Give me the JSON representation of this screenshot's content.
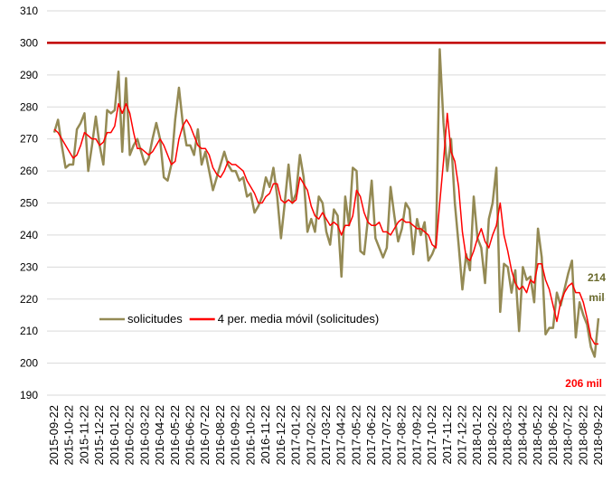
{
  "chart_data": {
    "type": "line",
    "categories": [
      "2015-09-22",
      null,
      null,
      null,
      "2015-10-22",
      null,
      null,
      null,
      "2015-11-22",
      null,
      null,
      null,
      "2015-12-22",
      null,
      null,
      null,
      "2016-01-22",
      null,
      null,
      null,
      "2016-02-22",
      null,
      null,
      null,
      "2016-03-22",
      null,
      null,
      null,
      "2016-04-22",
      null,
      null,
      null,
      "2016-05-22",
      null,
      null,
      null,
      "2016-06-22",
      null,
      null,
      null,
      "2016-07-22",
      null,
      null,
      null,
      "2016-08-22",
      null,
      null,
      null,
      "2016-09-22",
      null,
      null,
      null,
      "2016-10-22",
      null,
      null,
      null,
      "2016-11-22",
      null,
      null,
      null,
      "2016-12-22",
      null,
      null,
      null,
      "2017-01-22",
      null,
      null,
      null,
      "2017-02-22",
      null,
      null,
      null,
      "2017-03-22",
      null,
      null,
      null,
      "2017-04-22",
      null,
      null,
      null,
      "2017-05-22",
      null,
      null,
      null,
      "2017-06-22",
      null,
      null,
      null,
      "2017-07-22",
      null,
      null,
      null,
      "2017-08-22",
      null,
      null,
      null,
      "2017-09-22",
      null,
      null,
      null,
      "2017-10-22",
      null,
      null,
      null,
      "2017-11-22",
      null,
      null,
      null,
      "2017-12-22",
      null,
      null,
      null,
      "2018-01-22",
      null,
      null,
      null,
      "2018-02-22",
      null,
      null,
      null,
      "2018-03-22",
      null,
      null,
      null,
      "2018-04-22",
      null,
      null,
      null,
      "2018-05-22",
      null,
      null,
      null,
      "2018-06-22",
      null,
      null,
      null,
      "2018-07-22",
      null,
      null,
      null,
      "2018-08-22",
      null,
      null,
      null,
      "2018-09-22"
    ],
    "series": [
      {
        "name": "solicitudes",
        "color": "#948a54",
        "width": 2.5,
        "values": [
          272,
          276,
          268,
          261,
          262,
          262,
          273,
          275,
          278,
          260,
          268,
          277,
          268,
          262,
          279,
          278,
          279,
          291,
          266,
          289,
          265,
          268,
          270,
          266,
          262,
          264,
          270,
          275,
          270,
          258,
          257,
          262,
          276,
          286,
          275,
          268,
          268,
          265,
          273,
          262,
          266,
          260,
          254,
          258,
          262,
          266,
          262,
          260,
          260,
          257,
          258,
          252,
          253,
          247,
          249,
          252,
          258,
          255,
          261,
          252,
          239,
          250,
          262,
          250,
          253,
          265,
          258,
          241,
          245,
          241,
          252,
          250,
          241,
          237,
          248,
          246,
          227,
          252,
          243,
          261,
          260,
          235,
          234,
          245,
          257,
          239,
          236,
          233,
          236,
          255,
          246,
          238,
          242,
          250,
          248,
          234,
          245,
          240,
          244,
          232,
          234,
          237,
          298,
          275,
          260,
          270,
          250,
          237,
          223,
          234,
          229,
          252,
          239,
          236,
          225,
          245,
          250,
          261,
          216,
          231,
          230,
          222,
          229,
          210,
          230,
          226,
          227,
          219,
          242,
          233,
          209,
          211,
          211,
          222,
          218,
          223,
          228,
          232,
          208,
          219,
          215,
          212,
          205,
          202,
          214
        ]
      },
      {
        "name": "4 per. media móvil (solicitudes)",
        "color": "#ff0000",
        "width": 1.5,
        "values": [
          273,
          272,
          270,
          268,
          266,
          264,
          265,
          268,
          272,
          271,
          270,
          270,
          268,
          269,
          272,
          272,
          274,
          281,
          278,
          281,
          278,
          272,
          267,
          267,
          266,
          265,
          266,
          268,
          270,
          268,
          265,
          262,
          263,
          270,
          274,
          276,
          274,
          271,
          268,
          267,
          267,
          265,
          261,
          259,
          258,
          260,
          263,
          262,
          262,
          261,
          260,
          257,
          255,
          253,
          250,
          250,
          252,
          253,
          256,
          256,
          251,
          250,
          251,
          250,
          251,
          258,
          256,
          254,
          249,
          246,
          245,
          247,
          245,
          243,
          244,
          243,
          240,
          243,
          243,
          246,
          254,
          252,
          247,
          244,
          243,
          243,
          244,
          241,
          241,
          240,
          242,
          244,
          245,
          244,
          244,
          243,
          242,
          242,
          241,
          240,
          237,
          236,
          250,
          263,
          278,
          266,
          263,
          255,
          241,
          233,
          232,
          235,
          239,
          242,
          238,
          236,
          240,
          243,
          250,
          240,
          235,
          229,
          225,
          223,
          224,
          222,
          226,
          225,
          231,
          231,
          226,
          223,
          218,
          213,
          219,
          222,
          224,
          225,
          222,
          222,
          219,
          214,
          208,
          206,
          206
        ]
      }
    ],
    "ylim": [
      190,
      310
    ],
    "yticks": [
      190,
      200,
      210,
      220,
      230,
      240,
      250,
      260,
      270,
      280,
      290,
      300,
      310
    ],
    "grid": true,
    "reference_line": {
      "value": 300,
      "color": "#c00000"
    },
    "legend": "center-left",
    "annotations": [
      {
        "text": "214 mil",
        "color": "#6b6b2e"
      },
      {
        "text": "206 mil",
        "color": "#ff0000"
      }
    ]
  }
}
